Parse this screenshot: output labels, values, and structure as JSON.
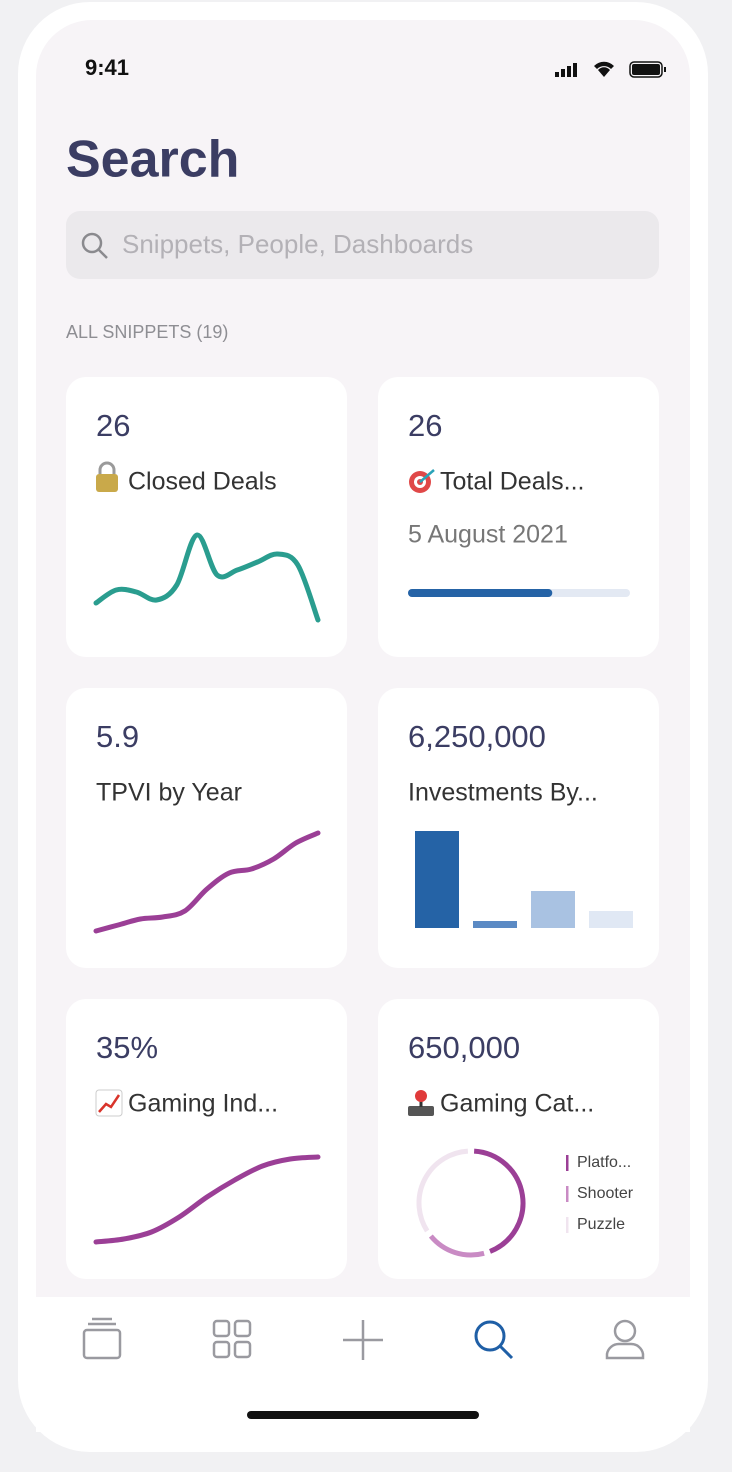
{
  "status_bar": {
    "time": "9:41"
  },
  "header": {
    "title": "Search"
  },
  "search": {
    "placeholder": "Snippets, People, Dashboards"
  },
  "section": {
    "label": "ALL SNIPPETS (19)"
  },
  "cards": [
    {
      "value": "26",
      "title": "Closed Deals",
      "chart": {
        "type": "line",
        "color": "#2a9d8f",
        "ylim": [
          0,
          100
        ],
        "values": [
          17,
          30,
          28,
          20,
          35,
          85,
          45,
          50,
          58,
          66,
          55,
          0
        ]
      }
    },
    {
      "value": "26",
      "title": "Total Deals...",
      "subtitle": "5 August 2021",
      "chart": {
        "type": "progress",
        "color": "#2563a6",
        "track_color": "#e3e9f3",
        "xlim": [
          0,
          1
        ],
        "values": [
          0.65
        ]
      }
    },
    {
      "value": "5.9",
      "title": "TPVI by Year",
      "chart": {
        "type": "line",
        "color": "#9b3f96",
        "ylim": [
          0,
          100
        ],
        "values": [
          0,
          6,
          12,
          14,
          20,
          42,
          58,
          62,
          72,
          88,
          98
        ]
      }
    },
    {
      "value": "6,250,000",
      "title": "Investments By...",
      "chart": {
        "type": "bar",
        "ylim": [
          0,
          100
        ],
        "values": [
          100,
          10,
          40,
          20
        ],
        "colors": [
          "#2563a6",
          "#5b8ac4",
          "#a9c2e2",
          "#e0e8f4"
        ]
      }
    },
    {
      "value": "35%",
      "title": "Gaming Ind...",
      "chart": {
        "type": "line",
        "color": "#9b3f96",
        "ylim": [
          0,
          100
        ],
        "values": [
          0,
          3,
          10,
          25,
          45,
          62,
          76,
          83,
          85
        ]
      }
    },
    {
      "value": "650,000",
      "title": "Gaming Cat...",
      "chart": {
        "type": "donut",
        "series": [
          {
            "name": "Platfo...",
            "color": "#9b3f96",
            "values": [
              45
            ]
          },
          {
            "name": "Shooter",
            "color": "#c98bc4",
            "values": [
              20
            ]
          },
          {
            "name": "Puzzle",
            "color": "#f0e4ef",
            "values": [
              35
            ]
          }
        ]
      }
    }
  ]
}
